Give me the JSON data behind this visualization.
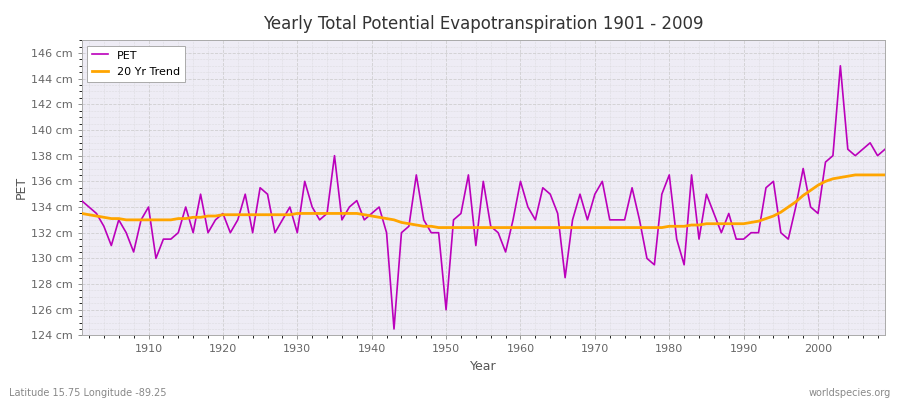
{
  "title": "Yearly Total Potential Evapotranspiration 1901 - 2009",
  "xlabel": "Year",
  "ylabel": "PET",
  "bottom_left": "Latitude 15.75 Longitude -89.25",
  "bottom_right": "worldspecies.org",
  "pet_color": "#BB00BB",
  "trend_color": "#FFA500",
  "bg_color": "#FFFFFF",
  "plot_bg_color": "#EEECF5",
  "grid_color": "#CCCCCC",
  "ylim": [
    124,
    147
  ],
  "yticks": [
    124,
    126,
    128,
    130,
    132,
    134,
    136,
    138,
    140,
    142,
    144,
    146
  ],
  "xlim": [
    1901,
    2009
  ],
  "xticks": [
    1910,
    1920,
    1930,
    1940,
    1950,
    1960,
    1970,
    1980,
    1990,
    2000
  ],
  "years": [
    1901,
    1902,
    1903,
    1904,
    1905,
    1906,
    1907,
    1908,
    1909,
    1910,
    1911,
    1912,
    1913,
    1914,
    1915,
    1916,
    1917,
    1918,
    1919,
    1920,
    1921,
    1922,
    1923,
    1924,
    1925,
    1926,
    1927,
    1928,
    1929,
    1930,
    1931,
    1932,
    1933,
    1934,
    1935,
    1936,
    1937,
    1938,
    1939,
    1940,
    1941,
    1942,
    1943,
    1944,
    1945,
    1946,
    1947,
    1948,
    1949,
    1950,
    1951,
    1952,
    1953,
    1954,
    1955,
    1956,
    1957,
    1958,
    1959,
    1960,
    1961,
    1962,
    1963,
    1964,
    1965,
    1966,
    1967,
    1968,
    1969,
    1970,
    1971,
    1972,
    1973,
    1974,
    1975,
    1976,
    1977,
    1978,
    1979,
    1980,
    1981,
    1982,
    1983,
    1984,
    1985,
    1986,
    1987,
    1988,
    1989,
    1990,
    1991,
    1992,
    1993,
    1994,
    1995,
    1996,
    1997,
    1998,
    1999,
    2000,
    2001,
    2002,
    2003,
    2004,
    2005,
    2006,
    2007,
    2008,
    2009
  ],
  "pet_values": [
    134.5,
    134.0,
    133.5,
    132.5,
    131.0,
    133.0,
    132.0,
    130.5,
    133.0,
    134.0,
    130.0,
    131.5,
    131.5,
    132.0,
    134.0,
    132.0,
    135.0,
    132.0,
    133.0,
    133.5,
    132.0,
    133.0,
    135.0,
    132.0,
    135.5,
    135.0,
    132.0,
    133.0,
    134.0,
    132.0,
    136.0,
    134.0,
    133.0,
    133.5,
    138.0,
    133.0,
    134.0,
    134.5,
    133.0,
    133.5,
    134.0,
    132.0,
    124.5,
    132.0,
    132.5,
    136.5,
    133.0,
    132.0,
    132.0,
    126.0,
    133.0,
    133.5,
    136.5,
    131.0,
    136.0,
    132.5,
    132.0,
    130.5,
    133.0,
    136.0,
    134.0,
    133.0,
    135.5,
    135.0,
    133.5,
    128.5,
    133.0,
    135.0,
    133.0,
    135.0,
    136.0,
    133.0,
    133.0,
    133.0,
    135.5,
    133.0,
    130.0,
    129.5,
    135.0,
    136.5,
    131.5,
    129.5,
    136.5,
    131.5,
    135.0,
    133.5,
    132.0,
    133.5,
    131.5,
    131.5,
    132.0,
    132.0,
    135.5,
    136.0,
    132.0,
    131.5,
    134.0,
    137.0,
    134.0,
    133.5,
    137.5,
    138.0,
    145.0,
    138.5,
    138.0,
    138.5,
    139.0,
    138.0,
    138.5
  ],
  "trend_values": [
    133.5,
    133.4,
    133.3,
    133.2,
    133.1,
    133.1,
    133.0,
    133.0,
    133.0,
    133.0,
    133.0,
    133.0,
    133.0,
    133.1,
    133.1,
    133.2,
    133.2,
    133.3,
    133.3,
    133.4,
    133.4,
    133.4,
    133.4,
    133.4,
    133.4,
    133.4,
    133.4,
    133.4,
    133.4,
    133.5,
    133.5,
    133.5,
    133.5,
    133.5,
    133.5,
    133.5,
    133.5,
    133.5,
    133.4,
    133.3,
    133.2,
    133.1,
    133.0,
    132.8,
    132.7,
    132.6,
    132.5,
    132.5,
    132.4,
    132.4,
    132.4,
    132.4,
    132.4,
    132.4,
    132.4,
    132.4,
    132.4,
    132.4,
    132.4,
    132.4,
    132.4,
    132.4,
    132.4,
    132.4,
    132.4,
    132.4,
    132.4,
    132.4,
    132.4,
    132.4,
    132.4,
    132.4,
    132.4,
    132.4,
    132.4,
    132.4,
    132.4,
    132.4,
    132.4,
    132.5,
    132.5,
    132.5,
    132.6,
    132.6,
    132.7,
    132.7,
    132.7,
    132.7,
    132.7,
    132.7,
    132.8,
    132.9,
    133.1,
    133.3,
    133.6,
    134.0,
    134.4,
    134.9,
    135.3,
    135.7,
    136.0,
    136.2,
    136.3,
    136.4,
    136.5,
    136.5,
    136.5,
    136.5,
    136.5
  ]
}
